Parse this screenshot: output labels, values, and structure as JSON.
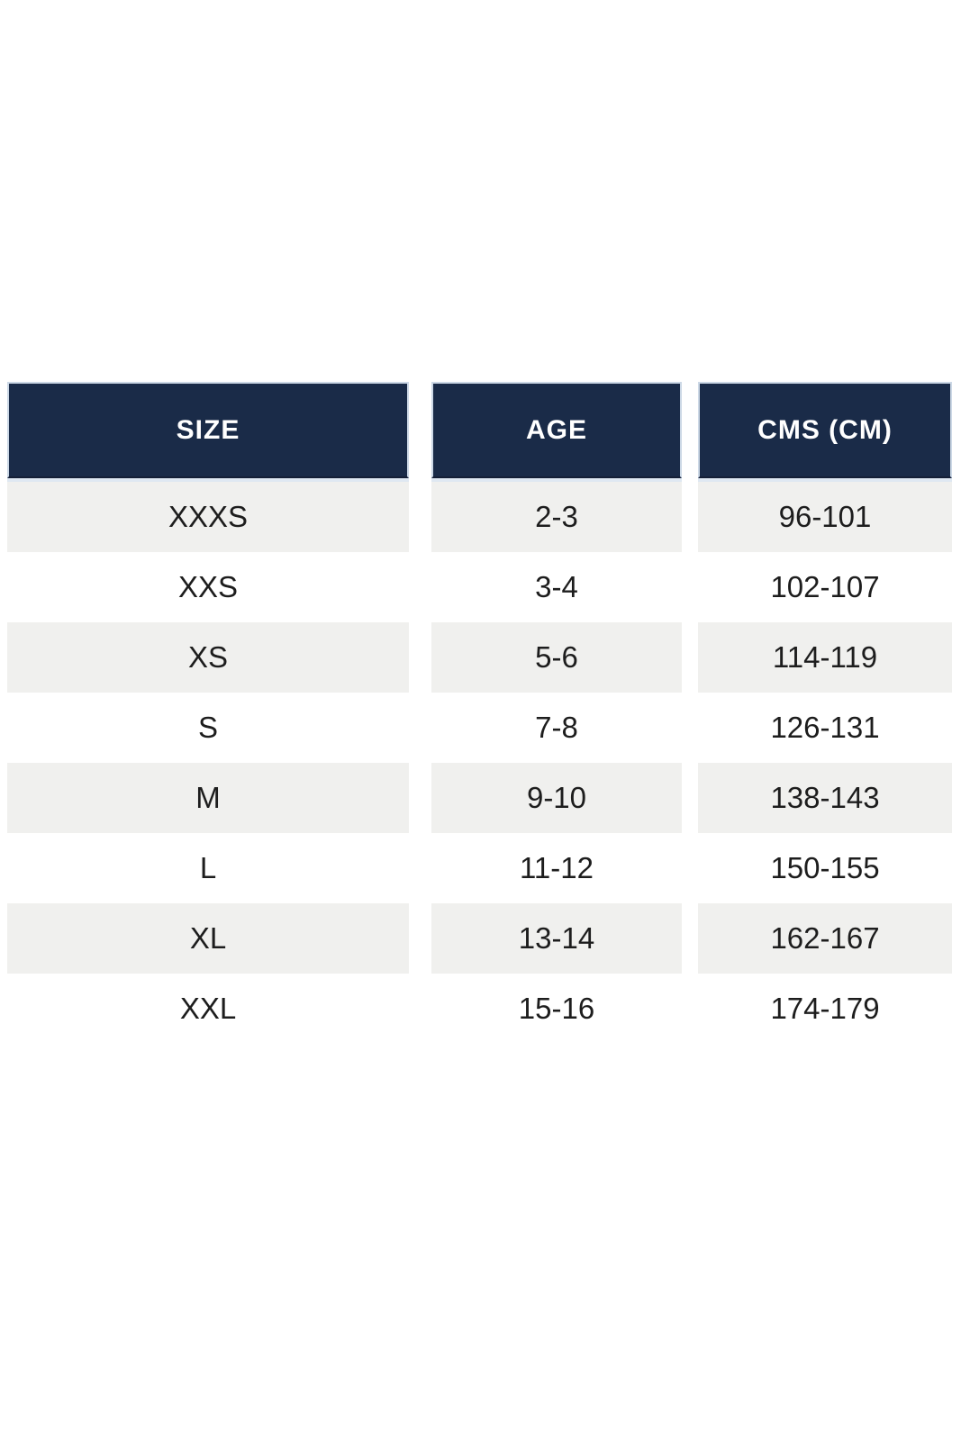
{
  "table": {
    "columns": [
      {
        "key": "size",
        "label": "SIZE"
      },
      {
        "key": "age",
        "label": "AGE"
      },
      {
        "key": "cms",
        "label": "CMS (CM)"
      }
    ],
    "rows": [
      {
        "size": "XXXS",
        "age": "2-3",
        "cms": "96-101"
      },
      {
        "size": "XXS",
        "age": "3-4",
        "cms": "102-107"
      },
      {
        "size": "XS",
        "age": "5-6",
        "cms": "114-119"
      },
      {
        "size": "S",
        "age": "7-8",
        "cms": "126-131"
      },
      {
        "size": "M",
        "age": "9-10",
        "cms": "138-143"
      },
      {
        "size": "L",
        "age": "11-12",
        "cms": "150-155"
      },
      {
        "size": "XL",
        "age": "13-14",
        "cms": "162-167"
      },
      {
        "size": "XXL",
        "age": "15-16",
        "cms": "174-179"
      }
    ],
    "colors": {
      "header_bg": "#1a2b48",
      "header_text": "#ffffff",
      "header_strip": "#dfe8f2",
      "row_alt_bg": "#f0f0ee",
      "row_bg": "#ffffff",
      "cell_text": "#1d1d1d",
      "page_bg": "#ffffff"
    }
  }
}
